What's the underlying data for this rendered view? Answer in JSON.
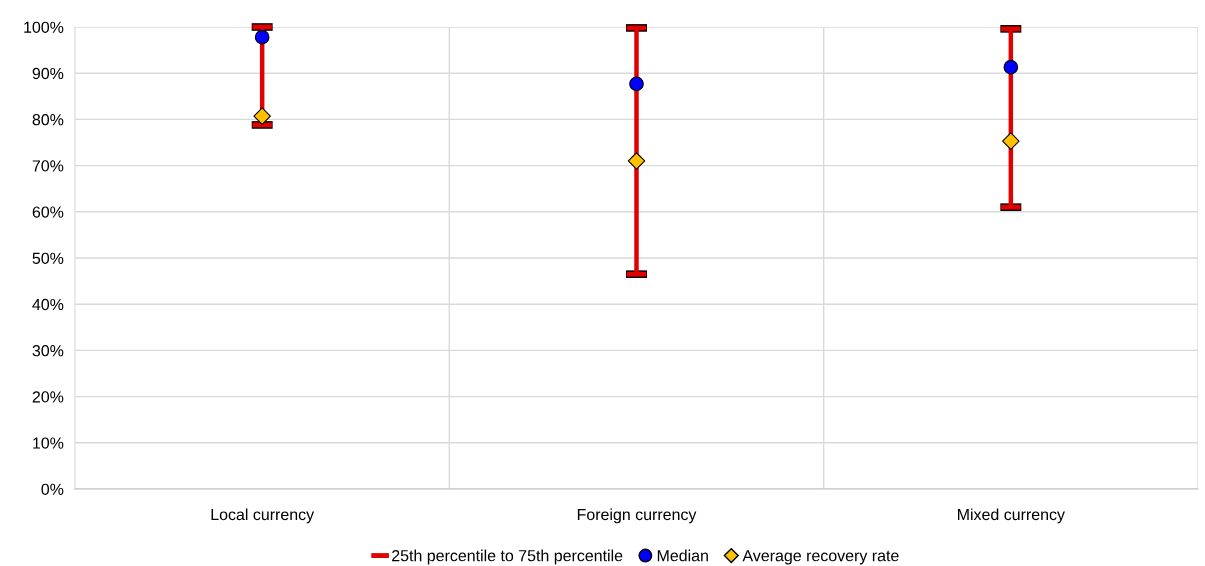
{
  "chart_data": {
    "type": "scatter",
    "categories": [
      "Local currency",
      "Foreign currency",
      "Mixed currency"
    ],
    "series": [
      {
        "name": "25th percentile to 75th percentile",
        "type": "bar",
        "color": "#e00000",
        "base": [
          78.8,
          46.5,
          61.0
        ],
        "values": [
          21.2,
          53.3,
          38.6
        ]
      },
      {
        "name": "Median",
        "color": "#0000ff",
        "marker": "circle",
        "values": [
          97.8,
          87.7,
          91.3
        ]
      },
      {
        "name": "Average recovery rate",
        "color": "#ffc000",
        "marker": "diamond",
        "values": [
          80.7,
          71.0,
          75.3
        ]
      }
    ],
    "ylim": [
      0,
      100
    ],
    "yticks": [
      {
        "value": 0,
        "label": "0%"
      },
      {
        "value": 10,
        "label": "10%"
      },
      {
        "value": 20,
        "label": "20%"
      },
      {
        "value": 30,
        "label": "30%"
      },
      {
        "value": 40,
        "label": "40%"
      },
      {
        "value": 50,
        "label": "50%"
      },
      {
        "value": 60,
        "label": "60%"
      },
      {
        "value": 70,
        "label": "70%"
      },
      {
        "value": 80,
        "label": "80%"
      },
      {
        "value": 90,
        "label": "90%"
      },
      {
        "value": 100,
        "label": "100%"
      }
    ],
    "grid": true,
    "legend": "bottom"
  }
}
